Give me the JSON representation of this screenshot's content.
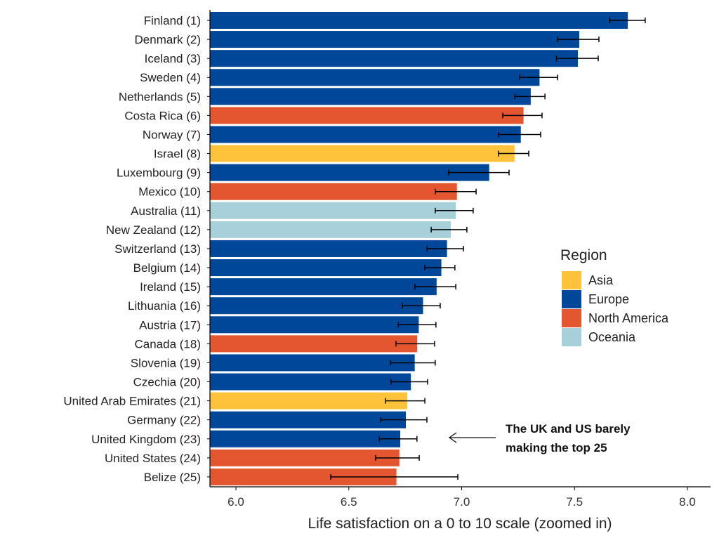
{
  "chart_data": {
    "type": "bar",
    "orientation": "horizontal",
    "xlabel": "Life satisfaction on a 0 to 10 scale (zoomed in)",
    "xlim": [
      5.885,
      8.1
    ],
    "xticks": [
      "6.0",
      "6.5",
      "7.0",
      "7.5",
      "8.0"
    ],
    "grid": false,
    "legend": {
      "title": "Region",
      "placement": "right",
      "entries": [
        {
          "name": "Asia",
          "color": "#FEC33B"
        },
        {
          "name": "Europe",
          "color": "#00479A"
        },
        {
          "name": "North America",
          "color": "#E3562F"
        },
        {
          "name": "Oceania",
          "color": "#A8D0DA"
        }
      ]
    },
    "categories": [
      "Finland (1)",
      "Denmark (2)",
      "Iceland (3)",
      "Sweden (4)",
      "Netherlands (5)",
      "Costa Rica (6)",
      "Norway (7)",
      "Israel (8)",
      "Luxembourg (9)",
      "Mexico (10)",
      "Australia (11)",
      "New Zealand (12)",
      "Switzerland (13)",
      "Belgium (14)",
      "Ireland (15)",
      "Lithuania (16)",
      "Austria (17)",
      "Canada (18)",
      "Slovenia (19)",
      "Czechia (20)",
      "United Arab Emirates (21)",
      "Germany (22)",
      "United Kingdom (23)",
      "United States (24)",
      "Belize (25)"
    ],
    "regions": [
      "Europe",
      "Europe",
      "Europe",
      "Europe",
      "Europe",
      "North America",
      "Europe",
      "Asia",
      "Europe",
      "North America",
      "Oceania",
      "Oceania",
      "Europe",
      "Europe",
      "Europe",
      "Europe",
      "Europe",
      "North America",
      "Europe",
      "Europe",
      "Asia",
      "Europe",
      "Europe",
      "North America",
      "North America"
    ],
    "values": [
      7.736,
      7.521,
      7.515,
      7.345,
      7.306,
      7.274,
      7.262,
      7.234,
      7.122,
      6.979,
      6.974,
      6.952,
      6.935,
      6.91,
      6.889,
      6.829,
      6.81,
      6.803,
      6.792,
      6.775,
      6.759,
      6.753,
      6.728,
      6.724,
      6.711
    ],
    "error_low": [
      7.656,
      7.425,
      7.42,
      7.257,
      7.235,
      7.182,
      7.163,
      7.163,
      6.942,
      6.883,
      6.883,
      6.865,
      6.846,
      6.837,
      6.793,
      6.737,
      6.719,
      6.709,
      6.684,
      6.687,
      6.663,
      6.641,
      6.635,
      6.619,
      6.42
    ],
    "error_high": [
      7.813,
      7.608,
      7.605,
      7.425,
      7.369,
      7.356,
      7.35,
      7.297,
      7.21,
      7.064,
      7.051,
      7.023,
      7.008,
      6.97,
      6.974,
      6.905,
      6.886,
      6.88,
      6.883,
      6.849,
      6.837,
      6.846,
      6.802,
      6.812,
      6.983
    ],
    "annotation": {
      "lines": [
        "The UK and US barely",
        "making the top 25"
      ],
      "points_to": "United Kingdom (23)"
    }
  }
}
